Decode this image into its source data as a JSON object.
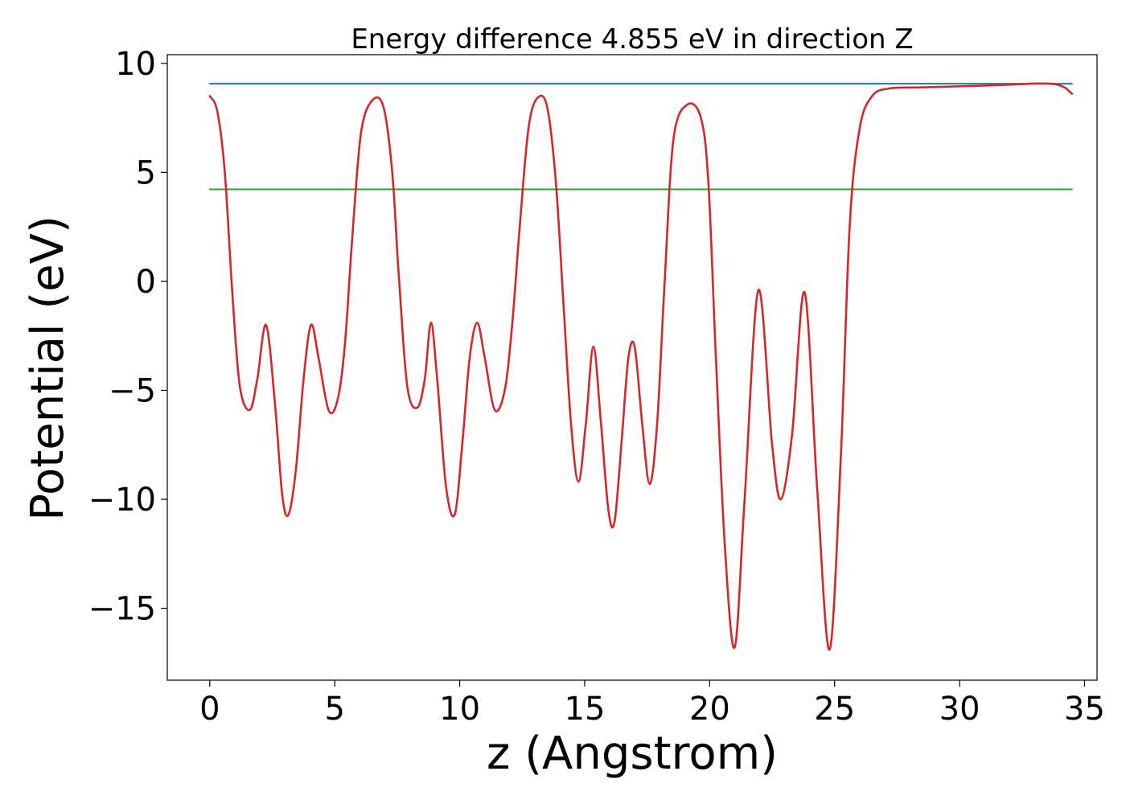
{
  "chart_data": {
    "type": "line",
    "title": "Energy difference 4.855 eV in direction Z",
    "xlabel": "z (Angstrom)",
    "ylabel": "Potential (eV)",
    "xlim": [
      -1.7,
      35.5
    ],
    "ylim": [
      -18.3,
      10.4
    ],
    "xticks": [
      0,
      5,
      10,
      15,
      20,
      25,
      30,
      35
    ],
    "yticks": [
      10,
      5,
      0,
      -5,
      -10,
      -15
    ],
    "xtick_labels": [
      "0",
      "5",
      "10",
      "15",
      "20",
      "25",
      "30",
      "35"
    ],
    "ytick_labels": [
      "10",
      "5",
      "0",
      "−5",
      "−10",
      "−15"
    ],
    "grid": false,
    "legend": "none",
    "series": [
      {
        "color": "#d62728",
        "x": [
          0,
          0.3,
          0.6,
          0.9,
          1.2,
          1.6,
          1.9,
          2.25,
          2.6,
          2.9,
          3.15,
          3.45,
          3.75,
          4.05,
          4.35,
          4.75,
          5.1,
          5.4,
          5.7,
          6.05,
          6.5,
          6.95,
          7.3,
          7.55,
          7.9,
          8.3,
          8.6,
          8.85,
          9.1,
          9.45,
          9.8,
          10.1,
          10.4,
          10.7,
          11.0,
          11.4,
          11.8,
          12.1,
          12.4,
          12.75,
          13.1,
          13.5,
          13.85,
          14.15,
          14.45,
          14.75,
          15.05,
          15.35,
          15.65,
          15.95,
          16.2,
          16.5,
          16.75,
          17.0,
          17.3,
          17.6,
          17.9,
          18.2,
          18.55,
          19.1,
          19.65,
          19.95,
          20.25,
          20.6,
          21.0,
          21.4,
          21.95,
          22.5,
          22.85,
          23.3,
          23.8,
          24.3,
          24.8,
          25.25,
          25.6,
          26.0,
          26.5,
          27.2,
          28.5,
          30.0,
          31.5,
          32.5,
          33.2,
          33.8,
          34.2,
          34.5
        ],
        "values": [
          8.5,
          7.8,
          5.0,
          -0.5,
          -4.8,
          -5.9,
          -4.5,
          -2.0,
          -5.5,
          -9.8,
          -10.7,
          -8.6,
          -4.5,
          -2.0,
          -3.5,
          -5.9,
          -5.5,
          -3.0,
          2.0,
          6.8,
          8.3,
          8.0,
          5.0,
          0.5,
          -4.8,
          -5.8,
          -4.5,
          -1.9,
          -4.5,
          -9.4,
          -10.7,
          -7.5,
          -3.5,
          -1.9,
          -3.5,
          -5.9,
          -5.0,
          -2.0,
          2.5,
          7.0,
          8.4,
          8.0,
          4.5,
          -1.0,
          -6.5,
          -9.2,
          -6.5,
          -3.0,
          -6.5,
          -10.5,
          -11.0,
          -7.0,
          -3.5,
          -3.0,
          -6.5,
          -9.3,
          -6.5,
          0.0,
          6.5,
          8.1,
          7.5,
          4.5,
          -3.5,
          -12.0,
          -16.8,
          -10.0,
          -0.4,
          -7.5,
          -10.0,
          -7.0,
          -0.5,
          -9.5,
          -16.9,
          -8.0,
          2.5,
          7.0,
          8.5,
          8.85,
          8.9,
          8.95,
          9.0,
          9.05,
          9.08,
          9.05,
          8.9,
          8.6
        ]
      },
      {
        "color": "#1f77b4",
        "x": [
          0,
          34.5
        ],
        "values": [
          9.07,
          9.07
        ]
      },
      {
        "color": "#2ca02c",
        "x": [
          0,
          34.5
        ],
        "values": [
          4.22,
          4.22
        ]
      }
    ]
  }
}
